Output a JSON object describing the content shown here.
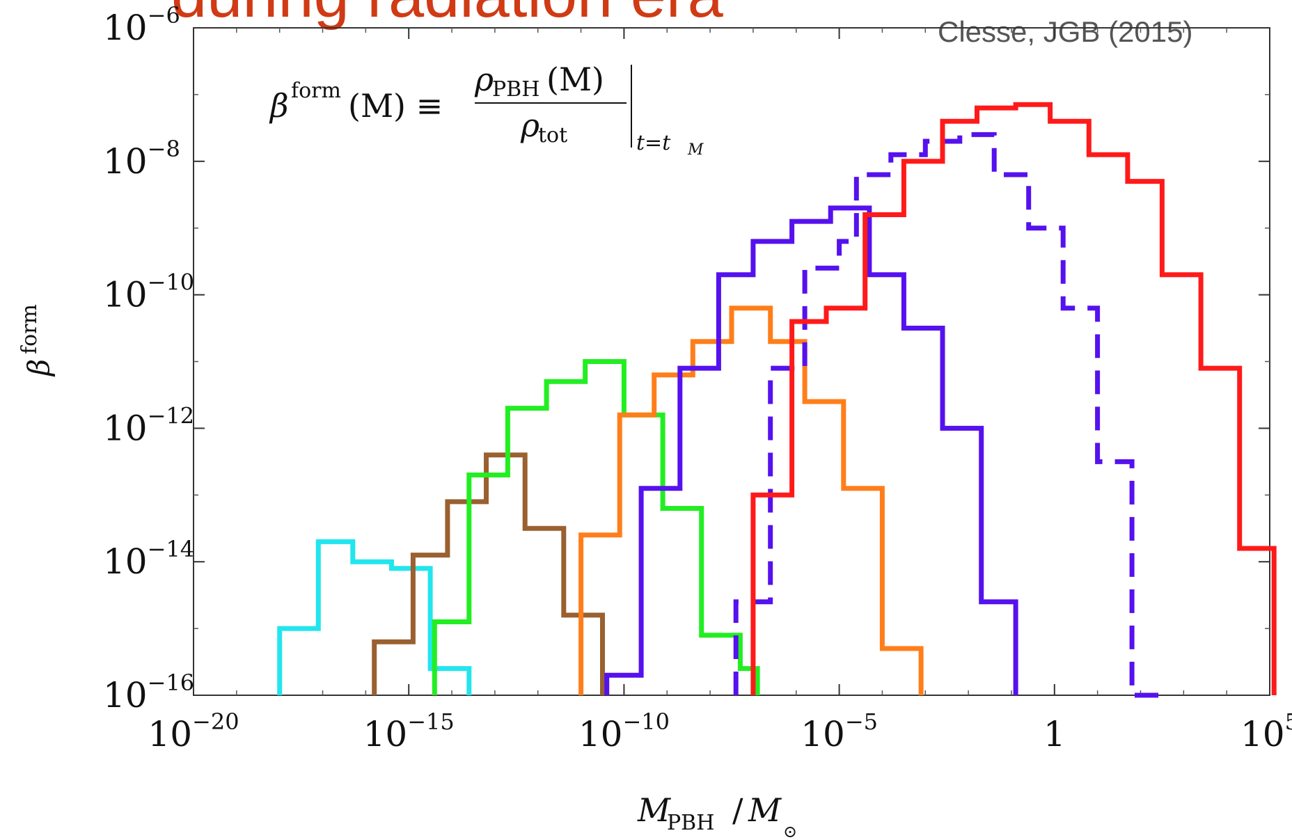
{
  "header": {
    "title_fragment": "during radiation era",
    "credit": "Clesse, JGB (2015)"
  },
  "formula": {
    "lhs_base": "β",
    "lhs_sup": "form",
    "lhs_arg": "(M) ≡",
    "numerator": "ρ",
    "numerator_sub": "PBH",
    "numerator_arg": "(M)",
    "denominator": "ρ",
    "denominator_sub": "tot",
    "eval_at": "t=t",
    "eval_sub": "M"
  },
  "chart_data": {
    "type": "line",
    "style": "step histograms",
    "x_scale": "log",
    "y_scale": "log",
    "xlabel": {
      "main": "M",
      "sub": "PBH",
      "slash": "/",
      "main2": "M",
      "sub2": "⊙"
    },
    "ylabel": {
      "main": "β",
      "sup": "form"
    },
    "xlim_log10": [
      -20,
      5
    ],
    "ylim_log10": [
      -16,
      -6
    ],
    "x_ticks": [
      {
        "base": "10",
        "exp": "−20",
        "log": -20
      },
      {
        "base": "10",
        "exp": "−15",
        "log": -15
      },
      {
        "base": "10",
        "exp": "−10",
        "log": -10
      },
      {
        "base": "10",
        "exp": "−5",
        "log": -5
      },
      {
        "base": "1",
        "exp": "",
        "log": 0
      },
      {
        "base": "10",
        "exp": "5",
        "log": 5
      }
    ],
    "y_ticks": [
      {
        "base": "10",
        "exp": "−6",
        "log": -6
      },
      {
        "base": "10",
        "exp": "−8",
        "log": -8
      },
      {
        "base": "10",
        "exp": "−10",
        "log": -10
      },
      {
        "base": "10",
        "exp": "−12",
        "log": -12
      },
      {
        "base": "10",
        "exp": "−14",
        "log": -14
      },
      {
        "base": "10",
        "exp": "−16",
        "log": -16
      }
    ],
    "series": [
      {
        "color": "#22e5ee",
        "dashed": false,
        "points": [
          [
            -18.0,
            -16.0
          ],
          [
            -18.0,
            -15.0
          ],
          [
            -17.1,
            -15.0
          ],
          [
            -17.1,
            -13.7
          ],
          [
            -16.3,
            -13.7
          ],
          [
            -16.3,
            -14.0
          ],
          [
            -15.4,
            -14.0
          ],
          [
            -15.4,
            -14.1
          ],
          [
            -14.5,
            -14.1
          ],
          [
            -14.5,
            -15.6
          ],
          [
            -13.6,
            -15.6
          ],
          [
            -13.6,
            -16.0
          ]
        ]
      },
      {
        "color": "#9a6030",
        "dashed": false,
        "points": [
          [
            -15.8,
            -16.0
          ],
          [
            -15.8,
            -15.2
          ],
          [
            -14.9,
            -15.2
          ],
          [
            -14.9,
            -13.9
          ],
          [
            -14.1,
            -13.9
          ],
          [
            -14.1,
            -13.1
          ],
          [
            -13.2,
            -13.1
          ],
          [
            -13.2,
            -12.4
          ],
          [
            -12.3,
            -12.4
          ],
          [
            -12.3,
            -13.5
          ],
          [
            -11.4,
            -13.5
          ],
          [
            -11.4,
            -14.8
          ],
          [
            -10.5,
            -14.8
          ],
          [
            -10.5,
            -16.0
          ]
        ]
      },
      {
        "color": "#22ee22",
        "dashed": false,
        "points": [
          [
            -14.4,
            -16.0
          ],
          [
            -14.4,
            -14.9
          ],
          [
            -13.6,
            -14.9
          ],
          [
            -13.6,
            -12.7
          ],
          [
            -12.7,
            -12.7
          ],
          [
            -12.7,
            -11.7
          ],
          [
            -11.8,
            -11.7
          ],
          [
            -11.8,
            -11.3
          ],
          [
            -10.9,
            -11.3
          ],
          [
            -10.9,
            -11.0
          ],
          [
            -10.0,
            -11.0
          ],
          [
            -10.0,
            -11.8
          ],
          [
            -9.1,
            -11.8
          ],
          [
            -9.1,
            -13.2
          ],
          [
            -8.2,
            -13.2
          ],
          [
            -8.2,
            -15.1
          ],
          [
            -7.3,
            -15.1
          ],
          [
            -7.3,
            -15.6
          ],
          [
            -6.9,
            -15.6
          ],
          [
            -6.9,
            -16.0
          ]
        ]
      },
      {
        "color": "#ff7e1a",
        "dashed": false,
        "points": [
          [
            -11.0,
            -16.0
          ],
          [
            -11.0,
            -13.6
          ],
          [
            -10.1,
            -13.6
          ],
          [
            -10.1,
            -11.8
          ],
          [
            -9.3,
            -11.8
          ],
          [
            -9.3,
            -11.2
          ],
          [
            -8.4,
            -11.2
          ],
          [
            -8.4,
            -10.7
          ],
          [
            -7.5,
            -10.7
          ],
          [
            -7.5,
            -10.2
          ],
          [
            -6.6,
            -10.2
          ],
          [
            -6.6,
            -10.7
          ],
          [
            -5.8,
            -10.7
          ],
          [
            -5.8,
            -11.6
          ],
          [
            -4.9,
            -11.6
          ],
          [
            -4.9,
            -12.9
          ],
          [
            -4.0,
            -12.9
          ],
          [
            -4.0,
            -15.3
          ],
          [
            -3.1,
            -15.3
          ],
          [
            -3.1,
            -16.0
          ]
        ]
      },
      {
        "color": "#5511ee",
        "dashed": false,
        "points": [
          [
            -10.4,
            -16.0
          ],
          [
            -10.4,
            -15.7
          ],
          [
            -9.6,
            -15.7
          ],
          [
            -9.6,
            -12.9
          ],
          [
            -8.7,
            -12.9
          ],
          [
            -8.7,
            -11.1
          ],
          [
            -7.8,
            -11.1
          ],
          [
            -7.8,
            -9.7
          ],
          [
            -7.0,
            -9.7
          ],
          [
            -7.0,
            -9.2
          ],
          [
            -6.1,
            -9.2
          ],
          [
            -6.1,
            -8.9
          ],
          [
            -5.2,
            -8.9
          ],
          [
            -5.2,
            -8.7
          ],
          [
            -4.3,
            -8.7
          ],
          [
            -4.3,
            -9.7
          ],
          [
            -3.5,
            -9.7
          ],
          [
            -3.5,
            -10.5
          ],
          [
            -2.6,
            -10.5
          ],
          [
            -2.6,
            -12.0
          ],
          [
            -1.7,
            -12.0
          ],
          [
            -1.7,
            -14.6
          ],
          [
            -0.9,
            -14.6
          ],
          [
            -0.9,
            -16.0
          ]
        ]
      },
      {
        "color": "#5511ee",
        "dashed": true,
        "points": [
          [
            -7.4,
            -16.0
          ],
          [
            -7.4,
            -14.6
          ],
          [
            -6.6,
            -14.6
          ],
          [
            -6.6,
            -11.1
          ],
          [
            -5.8,
            -11.1
          ],
          [
            -5.8,
            -9.6
          ],
          [
            -5.0,
            -9.6
          ],
          [
            -5.0,
            -9.2
          ],
          [
            -4.6,
            -9.2
          ],
          [
            -4.6,
            -8.2
          ],
          [
            -3.8,
            -8.2
          ],
          [
            -3.8,
            -7.9
          ],
          [
            -3.0,
            -7.9
          ],
          [
            -3.0,
            -7.7
          ],
          [
            -2.2,
            -7.7
          ],
          [
            -2.2,
            -7.6
          ],
          [
            -1.4,
            -7.6
          ],
          [
            -1.4,
            -8.2
          ],
          [
            -0.6,
            -8.2
          ],
          [
            -0.6,
            -9.0
          ],
          [
            0.2,
            -9.0
          ],
          [
            0.2,
            -10.2
          ],
          [
            1.0,
            -10.2
          ],
          [
            1.0,
            -12.5
          ],
          [
            1.8,
            -12.5
          ],
          [
            1.8,
            -16.0
          ],
          [
            2.6,
            -16.0
          ]
        ]
      },
      {
        "color": "#ff1a1a",
        "dashed": false,
        "points": [
          [
            -7.0,
            -16.0
          ],
          [
            -7.0,
            -13.0
          ],
          [
            -6.1,
            -13.0
          ],
          [
            -6.1,
            -10.4
          ],
          [
            -5.3,
            -10.4
          ],
          [
            -5.3,
            -10.2
          ],
          [
            -4.4,
            -10.2
          ],
          [
            -4.4,
            -8.8
          ],
          [
            -3.5,
            -8.8
          ],
          [
            -3.5,
            -8.0
          ],
          [
            -2.6,
            -8.0
          ],
          [
            -2.6,
            -7.4
          ],
          [
            -1.8,
            -7.4
          ],
          [
            -1.8,
            -7.2
          ],
          [
            -0.9,
            -7.2
          ],
          [
            -0.9,
            -7.15
          ],
          [
            -0.1,
            -7.15
          ],
          [
            -0.1,
            -7.4
          ],
          [
            0.8,
            -7.4
          ],
          [
            0.8,
            -7.9
          ],
          [
            1.7,
            -7.9
          ],
          [
            1.7,
            -8.3
          ],
          [
            2.5,
            -8.3
          ],
          [
            2.5,
            -9.7
          ],
          [
            3.4,
            -9.7
          ],
          [
            3.4,
            -11.1
          ],
          [
            4.3,
            -11.1
          ],
          [
            4.3,
            -13.8
          ],
          [
            5.1,
            -13.8
          ],
          [
            5.1,
            -16.0
          ]
        ]
      }
    ]
  }
}
